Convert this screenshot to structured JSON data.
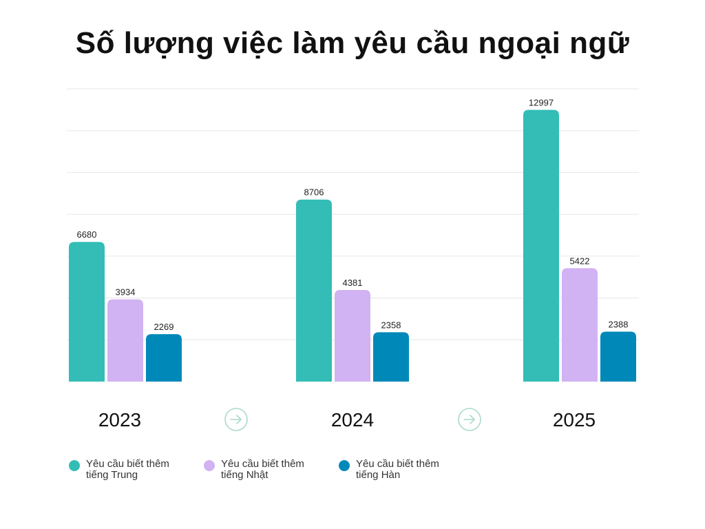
{
  "title": "Số lượng việc làm yêu cầu ngoại ngữ",
  "colors": {
    "trung": "#33bdb6",
    "nhat": "#d1b2f3",
    "han": "#0089b8",
    "grid": "#e6e6e6",
    "arrow": "#a9d9cc"
  },
  "icons": {
    "arrow": "arrow-right-circle-icon"
  },
  "chart_data": {
    "type": "bar",
    "title": "Số lượng việc làm yêu cầu ngoại ngữ",
    "categories": [
      "2023",
      "2024",
      "2025"
    ],
    "series": [
      {
        "name": "Yêu cầu biết thêm tiếng Trung",
        "values": [
          6680,
          8706,
          12997
        ]
      },
      {
        "name": "Yêu cầu biết thêm tiếng Nhật",
        "values": [
          3934,
          4381,
          5422
        ]
      },
      {
        "name": "Yêu cầu biết thêm tiếng Hàn",
        "values": [
          2269,
          2358,
          2388
        ]
      }
    ],
    "value_labels": [
      "6680",
      "3934",
      "2269",
      "8706",
      "4381",
      "2358",
      "12997",
      "5422",
      "2388"
    ],
    "ylim": [
      0,
      14000
    ],
    "grid": true,
    "legend_position": "bottom-left",
    "data_labels": true
  },
  "legend": [
    {
      "line1": "Yêu cầu biết thêm",
      "line2": "tiếng Trung"
    },
    {
      "line1": "Yêu cầu biết thêm",
      "line2": "tiếng Nhật"
    },
    {
      "line1": "Yêu cầu biết thêm",
      "line2": "tiếng Hàn"
    }
  ]
}
